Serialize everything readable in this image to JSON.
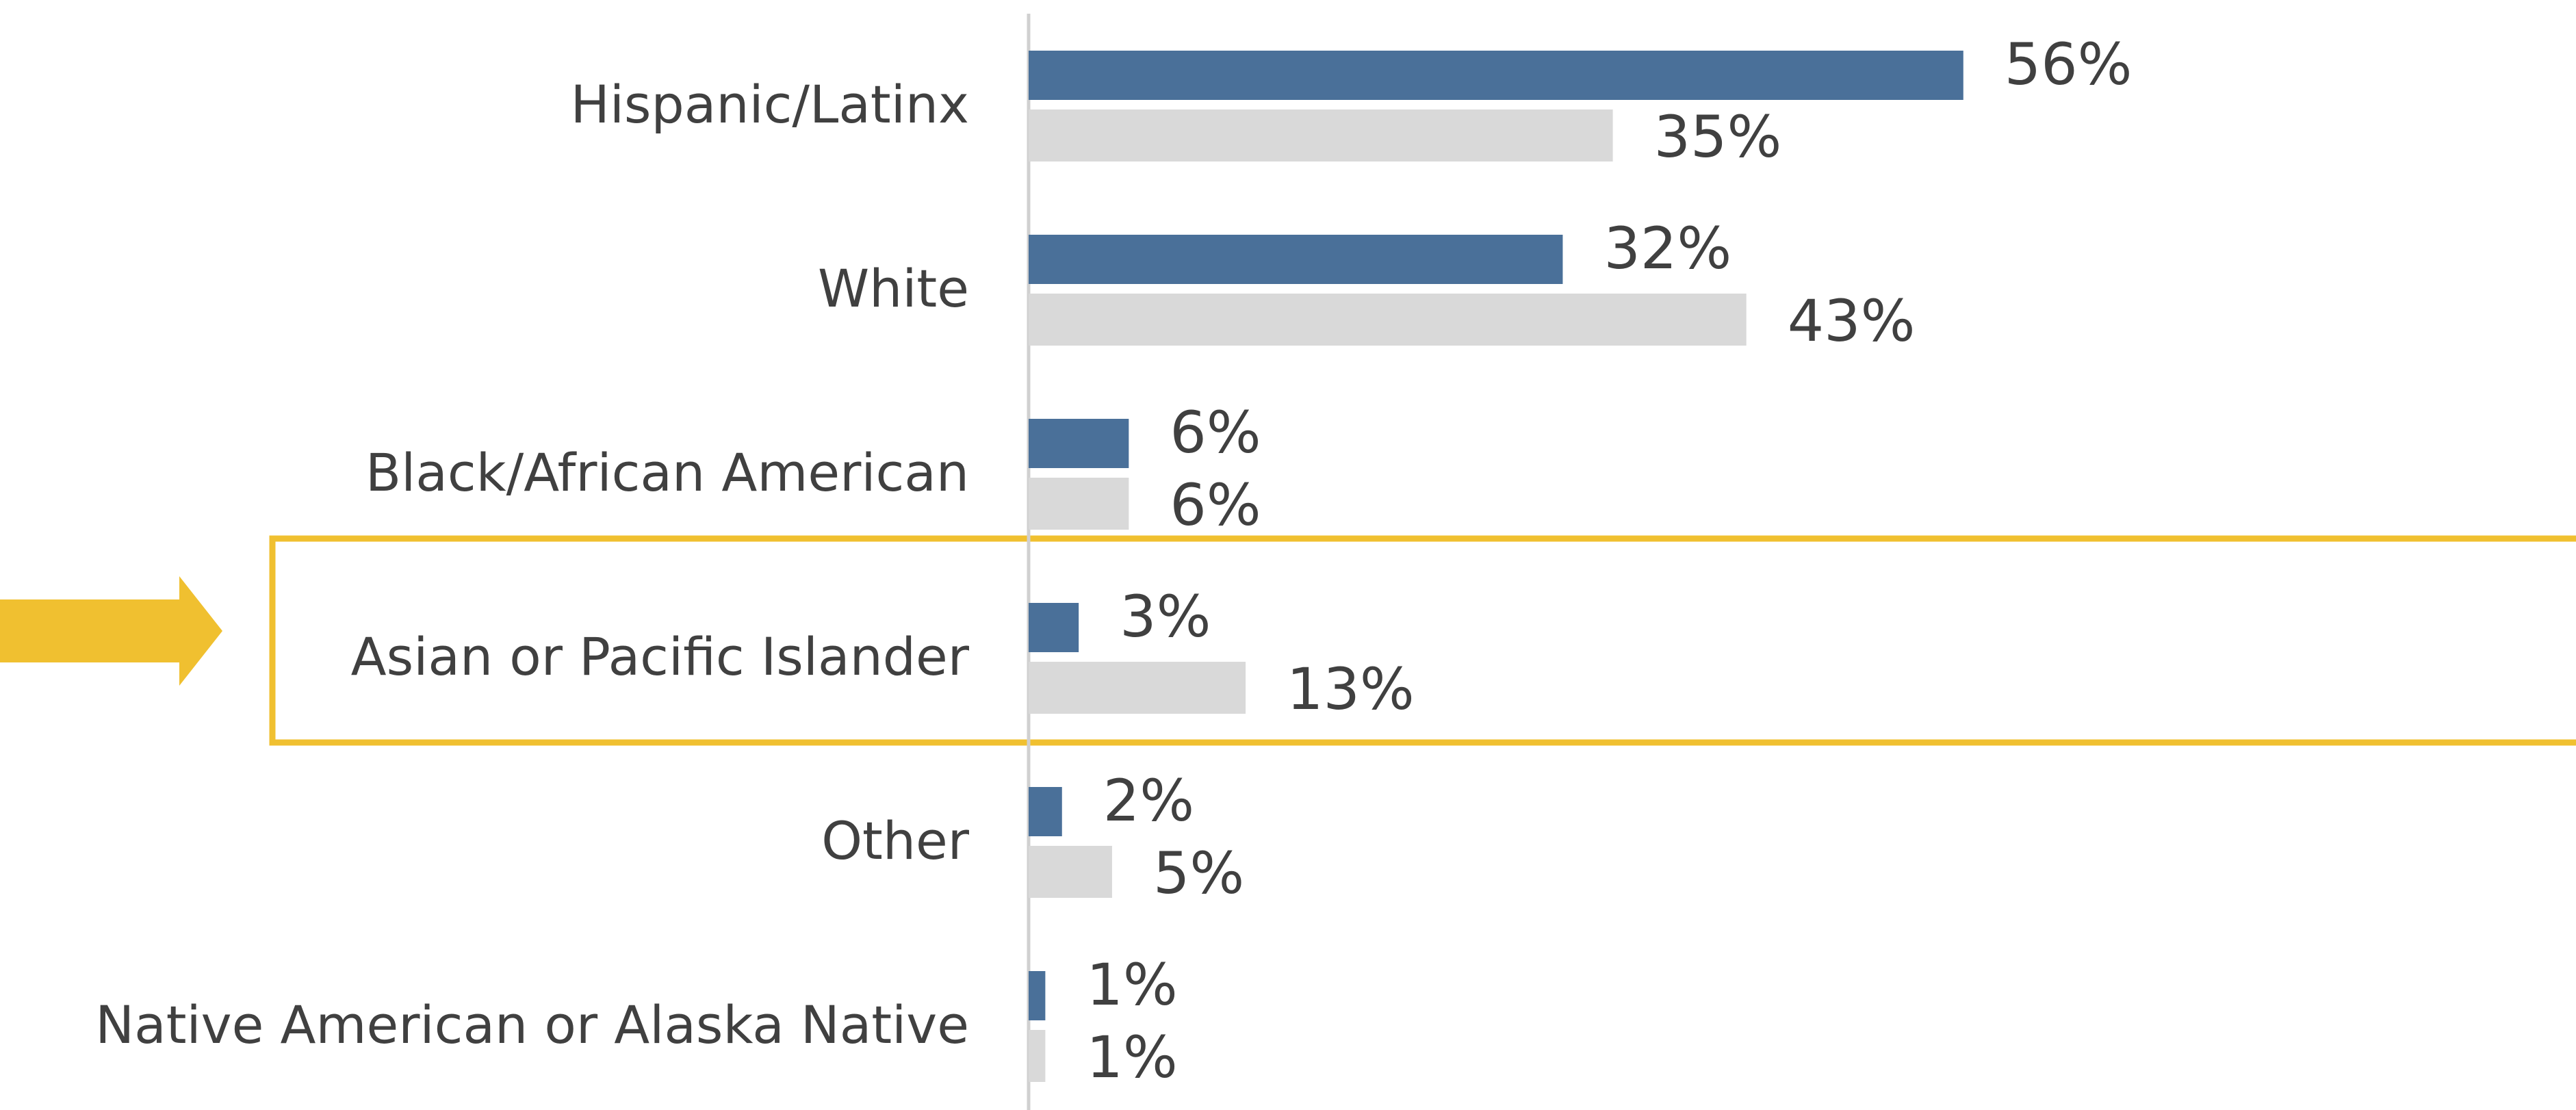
{
  "chart_data": {
    "type": "hbar",
    "categories": [
      "Hispanic/Latinx",
      "White",
      "Black/African American",
      "Asian or Pacific Islander",
      "Other",
      "Native American or Alaska Native"
    ],
    "series": [
      {
        "color": "#4a7099",
        "values": [
          56,
          32,
          6,
          3,
          2,
          1
        ],
        "value_labels": [
          "56%",
          "32%",
          "6%",
          "3%",
          "2%",
          "1%"
        ]
      },
      {
        "color": "#d9d9d9",
        "values": [
          35,
          43,
          6,
          13,
          5,
          1
        ],
        "value_labels": [
          "35%",
          "43%",
          "6%",
          "13%",
          "5%",
          "1%"
        ]
      }
    ],
    "xlim": [
      0,
      90
    ]
  }
}
